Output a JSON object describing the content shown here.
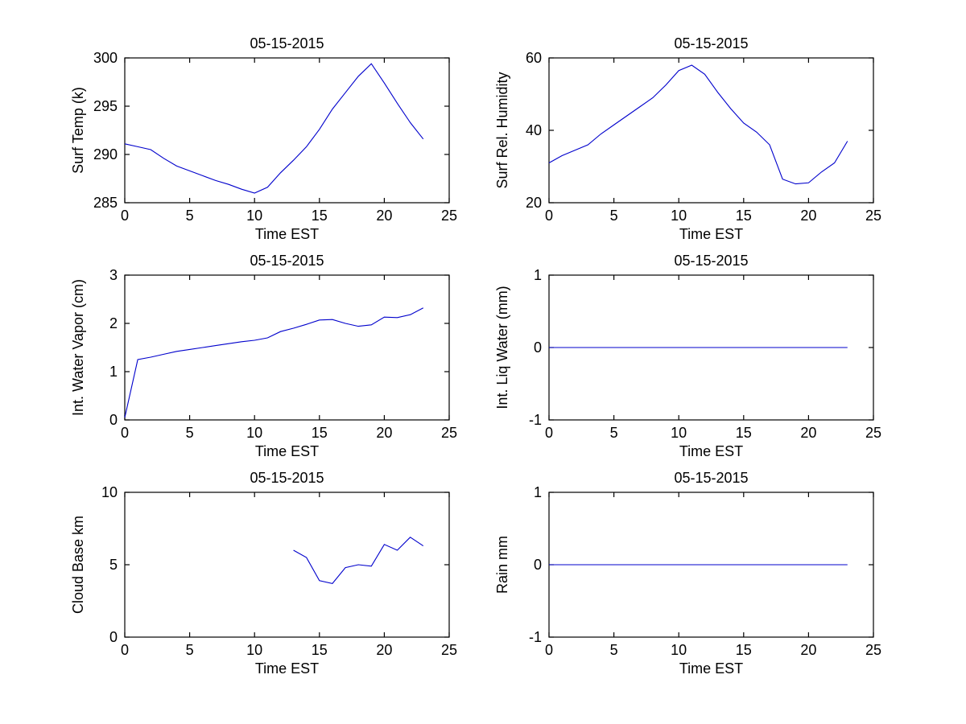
{
  "figure": {
    "background": "#ffffff",
    "axis_color": "#000000",
    "line_color": "#0000cc",
    "font_size": 18,
    "title_font_size": 18
  },
  "chart_data": [
    {
      "type": "line",
      "title": "05-15-2015",
      "xlabel": "Time EST",
      "ylabel": "Surf Temp (k)",
      "xlim": [
        0,
        25
      ],
      "ylim": [
        285,
        300
      ],
      "xticks": [
        0,
        5,
        10,
        15,
        20,
        25
      ],
      "yticks": [
        285,
        290,
        295,
        300
      ],
      "grid": false,
      "legend": null,
      "x": [
        0,
        1,
        2,
        3,
        4,
        5,
        6,
        7,
        8,
        9,
        10,
        11,
        12,
        13,
        14,
        15,
        16,
        17,
        18,
        19,
        20,
        21,
        22,
        23
      ],
      "y": [
        291.1,
        290.8,
        290.5,
        289.6,
        288.8,
        288.3,
        287.8,
        287.3,
        286.9,
        286.4,
        286.0,
        286.6,
        288.1,
        289.4,
        290.8,
        292.6,
        294.7,
        296.4,
        298.1,
        299.4,
        297.4,
        295.3,
        293.3,
        291.6
      ]
    },
    {
      "type": "line",
      "title": "05-15-2015",
      "xlabel": "Time EST",
      "ylabel": "Surf Rel. Humidity",
      "xlim": [
        0,
        25
      ],
      "ylim": [
        20,
        60
      ],
      "xticks": [
        0,
        5,
        10,
        15,
        20,
        25
      ],
      "yticks": [
        20,
        40,
        60
      ],
      "grid": false,
      "legend": null,
      "x": [
        0,
        1,
        2,
        3,
        4,
        5,
        6,
        7,
        8,
        9,
        10,
        11,
        12,
        13,
        14,
        15,
        16,
        17,
        18,
        19,
        20,
        21,
        22,
        23
      ],
      "y": [
        31,
        33,
        34.5,
        36,
        39,
        41.5,
        44,
        46.5,
        49,
        52.5,
        56.5,
        58,
        55.5,
        50.5,
        46,
        42,
        39.5,
        36,
        26.5,
        25.2,
        25.5,
        28.5,
        31,
        37
      ]
    },
    {
      "type": "line",
      "title": "05-15-2015",
      "xlabel": "Time EST",
      "ylabel": "Int. Water Vapor (cm)",
      "xlim": [
        0,
        25
      ],
      "ylim": [
        0,
        3
      ],
      "xticks": [
        0,
        5,
        10,
        15,
        20,
        25
      ],
      "yticks": [
        0,
        1,
        2,
        3
      ],
      "grid": false,
      "legend": null,
      "x": [
        0,
        1,
        2,
        3,
        4,
        5,
        6,
        7,
        8,
        9,
        10,
        11,
        12,
        13,
        14,
        15,
        16,
        17,
        18,
        19,
        20,
        21,
        22,
        23
      ],
      "y": [
        0.05,
        1.25,
        1.3,
        1.36,
        1.42,
        1.46,
        1.5,
        1.54,
        1.58,
        1.62,
        1.65,
        1.7,
        1.83,
        1.9,
        1.98,
        2.07,
        2.08,
        2.0,
        1.94,
        1.97,
        2.13,
        2.12,
        2.18,
        2.32
      ]
    },
    {
      "type": "line",
      "title": "05-15-2015",
      "xlabel": "Time EST",
      "ylabel": "Int. Liq Water (mm)",
      "xlim": [
        0,
        25
      ],
      "ylim": [
        -1,
        1
      ],
      "xticks": [
        0,
        5,
        10,
        15,
        20,
        25
      ],
      "yticks": [
        -1,
        0,
        1
      ],
      "grid": false,
      "legend": null,
      "x": [
        0,
        1,
        2,
        3,
        4,
        5,
        6,
        7,
        8,
        9,
        10,
        11,
        12,
        13,
        14,
        15,
        16,
        17,
        18,
        19,
        20,
        21,
        22,
        23
      ],
      "y": [
        0,
        0,
        0,
        0,
        0,
        0,
        0,
        0,
        0,
        0,
        0,
        0,
        0,
        0,
        0,
        0,
        0,
        0,
        0,
        0,
        0,
        0,
        0,
        0
      ]
    },
    {
      "type": "line",
      "title": "05-15-2015",
      "xlabel": "Time EST",
      "ylabel": "Cloud Base km",
      "xlim": [
        0,
        25
      ],
      "ylim": [
        0,
        10
      ],
      "xticks": [
        0,
        5,
        10,
        15,
        20,
        25
      ],
      "yticks": [
        0,
        5,
        10
      ],
      "grid": false,
      "legend": null,
      "x": [
        13,
        14,
        15,
        16,
        17,
        18,
        19,
        20,
        21,
        22,
        23
      ],
      "y": [
        6.0,
        5.5,
        3.9,
        3.7,
        4.8,
        5.0,
        4.9,
        6.4,
        6.0,
        6.9,
        6.3
      ]
    },
    {
      "type": "line",
      "title": "05-15-2015",
      "xlabel": "Time EST",
      "ylabel": "Rain mm",
      "xlim": [
        0,
        25
      ],
      "ylim": [
        -1,
        1
      ],
      "xticks": [
        0,
        5,
        10,
        15,
        20,
        25
      ],
      "yticks": [
        -1,
        0,
        1
      ],
      "grid": false,
      "legend": null,
      "x": [
        0,
        1,
        2,
        3,
        4,
        5,
        6,
        7,
        8,
        9,
        10,
        11,
        12,
        13,
        14,
        15,
        16,
        17,
        18,
        19,
        20,
        21,
        22,
        23
      ],
      "y": [
        0,
        0,
        0,
        0,
        0,
        0,
        0,
        0,
        0,
        0,
        0,
        0,
        0,
        0,
        0,
        0,
        0,
        0,
        0,
        0,
        0,
        0,
        0,
        0
      ]
    }
  ]
}
